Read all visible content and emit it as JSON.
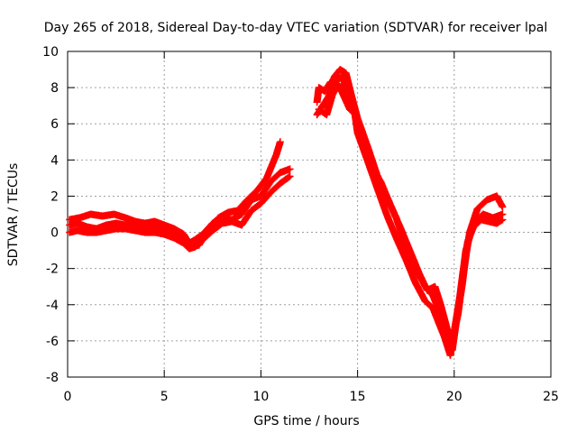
{
  "chart_data": {
    "type": "scatter",
    "title": "Day 265 of 2018, Sidereal Day-to-day VTEC variation (SDTVAR) for receiver lpal",
    "xlabel": "GPS time / hours",
    "ylabel": "SDTVAR / TECUs",
    "xlim": [
      0,
      25
    ],
    "ylim": [
      -8,
      10
    ],
    "xticks": [
      0,
      5,
      10,
      15,
      20,
      25
    ],
    "yticks": [
      -8,
      -6,
      -4,
      -2,
      0,
      2,
      4,
      6,
      8,
      10
    ],
    "grid": true,
    "marker": "+",
    "series": [
      {
        "name": "SDTVAR",
        "color": "#ff0000",
        "segments": [
          [
            [
              0.1,
              0.4
            ],
            [
              0.5,
              0.5
            ],
            [
              1.0,
              0.3
            ],
            [
              1.5,
              0.2
            ],
            [
              2.0,
              0.4
            ],
            [
              2.5,
              0.5
            ],
            [
              3.0,
              0.4
            ],
            [
              3.5,
              0.4
            ],
            [
              4.0,
              0.3
            ],
            [
              4.5,
              0.3
            ],
            [
              5.0,
              0.2
            ],
            [
              5.5,
              0.0
            ],
            [
              6.0,
              -0.3
            ],
            [
              6.3,
              -0.6
            ],
            [
              6.6,
              -0.4
            ],
            [
              7.0,
              -0.1
            ],
            [
              7.5,
              0.5
            ],
            [
              8.0,
              0.8
            ],
            [
              8.5,
              0.7
            ],
            [
              9.0,
              1.0
            ],
            [
              9.5,
              1.8
            ],
            [
              10.0,
              2.0
            ],
            [
              10.5,
              2.8
            ],
            [
              11.0,
              3.3
            ],
            [
              11.5,
              3.5
            ]
          ],
          [
            [
              0.1,
              0.7
            ],
            [
              0.6,
              0.8
            ],
            [
              1.2,
              1.0
            ],
            [
              1.8,
              0.9
            ],
            [
              2.4,
              1.0
            ],
            [
              3.0,
              0.8
            ],
            [
              3.5,
              0.6
            ],
            [
              4.0,
              0.5
            ],
            [
              4.5,
              0.6
            ],
            [
              5.0,
              0.4
            ],
            [
              5.5,
              0.2
            ],
            [
              6.0,
              -0.1
            ],
            [
              6.4,
              -0.8
            ],
            [
              6.8,
              -0.7
            ],
            [
              7.2,
              0.0
            ],
            [
              7.8,
              0.8
            ],
            [
              8.3,
              1.1
            ],
            [
              8.8,
              1.2
            ],
            [
              9.3,
              1.8
            ],
            [
              9.8,
              2.3
            ],
            [
              10.3,
              3.0
            ],
            [
              10.8,
              4.3
            ],
            [
              11.0,
              5.0
            ]
          ],
          [
            [
              0.1,
              0.0
            ],
            [
              0.5,
              0.1
            ],
            [
              1.0,
              0.0
            ],
            [
              1.5,
              0.0
            ],
            [
              2.0,
              0.1
            ],
            [
              2.5,
              0.2
            ],
            [
              3.0,
              0.2
            ],
            [
              3.5,
              0.1
            ],
            [
              4.0,
              0.0
            ],
            [
              4.5,
              0.0
            ],
            [
              5.0,
              -0.1
            ],
            [
              5.5,
              -0.3
            ],
            [
              6.0,
              -0.6
            ],
            [
              6.3,
              -0.9
            ],
            [
              6.6,
              -0.8
            ],
            [
              7.0,
              -0.4
            ],
            [
              7.5,
              0.1
            ],
            [
              8.0,
              0.5
            ],
            [
              8.5,
              0.6
            ],
            [
              9.0,
              0.4
            ],
            [
              9.5,
              1.2
            ],
            [
              10.0,
              1.6
            ],
            [
              10.5,
              2.2
            ],
            [
              11.0,
              2.7
            ],
            [
              11.5,
              3.1
            ]
          ],
          [
            [
              12.9,
              7.2
            ],
            [
              13.0,
              8.0
            ],
            [
              13.3,
              7.8
            ],
            [
              13.6,
              8.3
            ],
            [
              13.9,
              8.4
            ],
            [
              14.2,
              8.6
            ],
            [
              14.5,
              7.8
            ],
            [
              14.8,
              7.0
            ],
            [
              15.0,
              5.5
            ],
            [
              15.5,
              4.0
            ],
            [
              16.0,
              2.5
            ],
            [
              16.5,
              1.0
            ],
            [
              17.0,
              -0.3
            ],
            [
              17.5,
              -1.5
            ],
            [
              18.0,
              -2.8
            ],
            [
              18.5,
              -3.8
            ],
            [
              18.9,
              -4.2
            ],
            [
              19.2,
              -5.0
            ],
            [
              19.5,
              -5.8
            ],
            [
              19.8,
              -6.8
            ],
            [
              20.0,
              -5.5
            ],
            [
              20.3,
              -3.5
            ],
            [
              20.6,
              -1.0
            ],
            [
              21.0,
              0.5
            ],
            [
              21.5,
              1.0
            ],
            [
              22.0,
              0.8
            ],
            [
              22.5,
              1.0
            ]
          ],
          [
            [
              12.9,
              6.5
            ],
            [
              13.2,
              7.0
            ],
            [
              13.5,
              7.5
            ],
            [
              13.8,
              8.6
            ],
            [
              14.1,
              9.0
            ],
            [
              14.4,
              8.8
            ],
            [
              14.7,
              7.5
            ],
            [
              15.0,
              6.3
            ],
            [
              15.5,
              4.8
            ],
            [
              16.0,
              3.2
            ],
            [
              16.5,
              2.0
            ],
            [
              17.0,
              0.8
            ],
            [
              17.5,
              -0.8
            ],
            [
              18.0,
              -2.0
            ],
            [
              18.5,
              -3.0
            ],
            [
              18.9,
              -3.5
            ],
            [
              19.2,
              -4.3
            ],
            [
              19.5,
              -5.5
            ],
            [
              19.7,
              -6.3
            ],
            [
              19.9,
              -6.0
            ],
            [
              20.2,
              -4.5
            ],
            [
              20.5,
              -2.0
            ],
            [
              20.8,
              0.0
            ],
            [
              21.2,
              1.3
            ],
            [
              21.7,
              1.8
            ],
            [
              22.2,
              2.0
            ],
            [
              22.5,
              1.4
            ]
          ],
          [
            [
              13.0,
              6.8
            ],
            [
              13.4,
              6.5
            ],
            [
              13.7,
              7.6
            ],
            [
              14.0,
              8.2
            ],
            [
              14.3,
              7.5
            ],
            [
              14.6,
              6.8
            ],
            [
              14.9,
              6.5
            ],
            [
              15.2,
              5.0
            ],
            [
              15.7,
              3.6
            ],
            [
              16.2,
              2.8
            ],
            [
              16.7,
              1.5
            ],
            [
              17.2,
              0.3
            ],
            [
              17.7,
              -1.0
            ],
            [
              18.2,
              -2.3
            ],
            [
              18.6,
              -3.2
            ],
            [
              19.0,
              -3.0
            ],
            [
              19.3,
              -4.0
            ],
            [
              19.6,
              -5.2
            ],
            [
              19.9,
              -6.5
            ],
            [
              20.1,
              -5.0
            ],
            [
              20.4,
              -3.0
            ],
            [
              20.7,
              -0.5
            ],
            [
              21.0,
              0.3
            ],
            [
              21.4,
              0.7
            ],
            [
              21.8,
              0.6
            ],
            [
              22.2,
              0.5
            ],
            [
              22.5,
              0.7
            ]
          ]
        ]
      }
    ]
  }
}
